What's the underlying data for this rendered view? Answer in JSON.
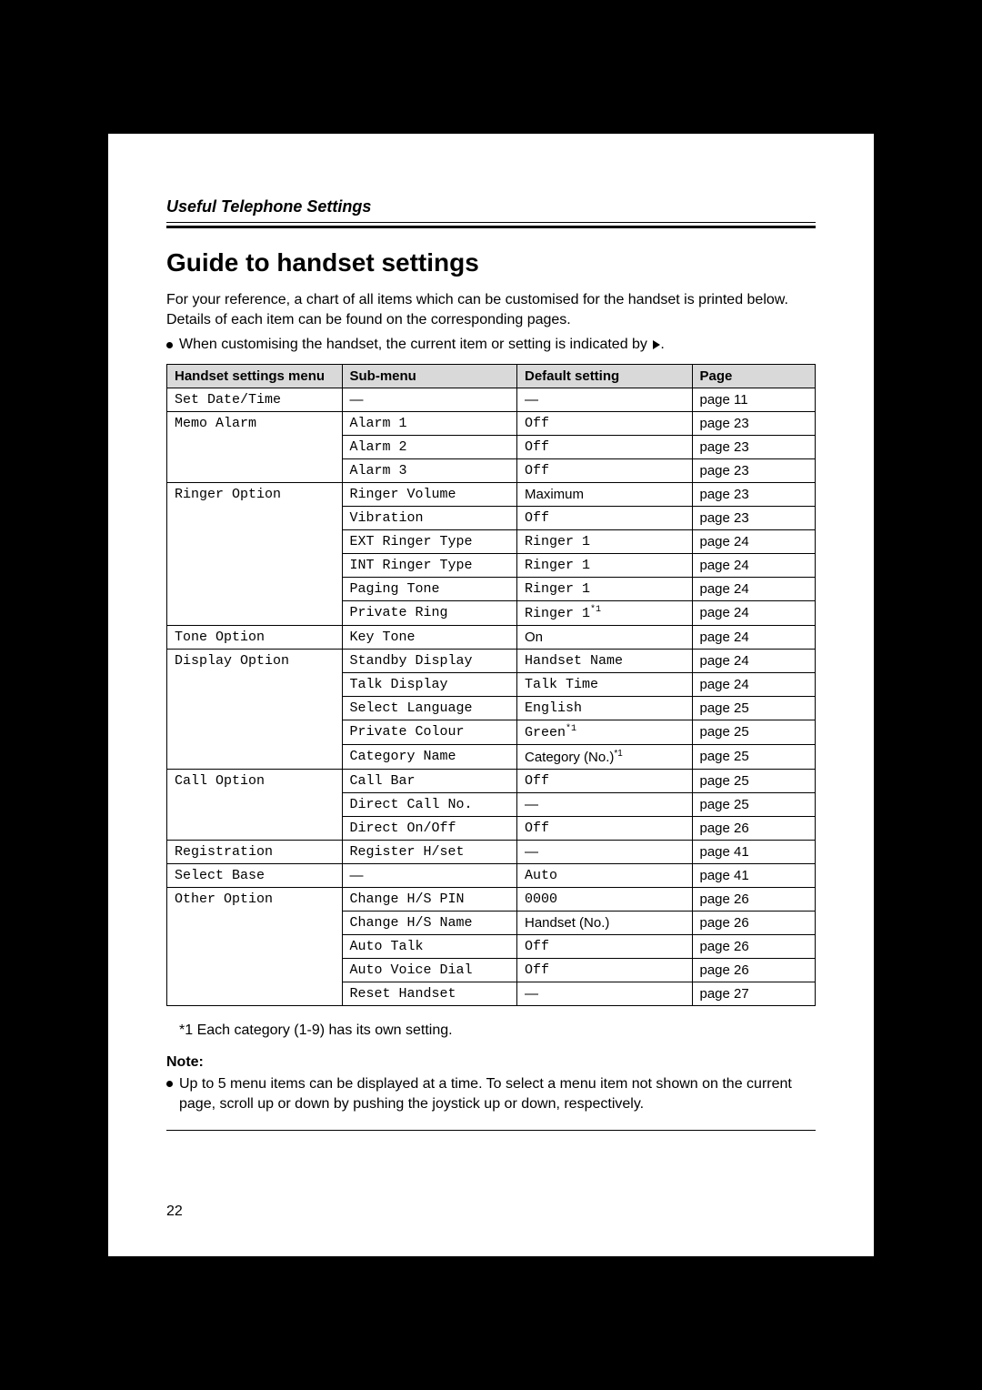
{
  "section_label": "Useful Telephone Settings",
  "title": "Guide to handset settings",
  "intro": "For your reference, a chart of all items which can be customised for the handset is printed below. Details of each item can be found on the corresponding pages.",
  "bullet_customising_prefix": "When customising the handset, the current item or setting is indicated by ",
  "bullet_customising_suffix": ".",
  "headers": {
    "menu": "Handset settings menu",
    "submenu": "Sub-menu",
    "default": "Default setting",
    "page": "Page"
  },
  "rows": [
    {
      "menu": "Set Date/Time",
      "menu_mono": true,
      "sub": "—",
      "sub_mono": false,
      "sub_dash": true,
      "def": "—",
      "def_mono": false,
      "def_dash": true,
      "page": "page 11",
      "menu_border": "single"
    },
    {
      "menu": "Memo Alarm",
      "menu_mono": true,
      "sub": "Alarm 1",
      "sub_mono": true,
      "def": "Off",
      "def_mono": true,
      "page": "page 23",
      "menu_border": "open_bottom"
    },
    {
      "menu": "",
      "sub": "Alarm 2",
      "sub_mono": true,
      "def": "Off",
      "def_mono": true,
      "page": "page 23",
      "menu_border": "open_both"
    },
    {
      "menu": "",
      "sub": "Alarm 3",
      "sub_mono": true,
      "def": "Off",
      "def_mono": true,
      "page": "page 23",
      "menu_border": "open_top"
    },
    {
      "menu": "Ringer Option",
      "menu_mono": true,
      "sub": "Ringer Volume",
      "sub_mono": true,
      "def": "Maximum",
      "def_mono": false,
      "page": "page 23",
      "menu_border": "open_bottom"
    },
    {
      "menu": "",
      "sub": "Vibration",
      "sub_mono": true,
      "def": "Off",
      "def_mono": true,
      "page": "page 23",
      "menu_border": "open_both"
    },
    {
      "menu": "",
      "sub": "EXT Ringer Type",
      "sub_mono": true,
      "def": "Ringer 1",
      "def_mono": true,
      "page": "page 24",
      "menu_border": "open_both"
    },
    {
      "menu": "",
      "sub": "INT Ringer Type",
      "sub_mono": true,
      "def": "Ringer 1",
      "def_mono": true,
      "page": "page 24",
      "menu_border": "open_both"
    },
    {
      "menu": "",
      "sub": "Paging Tone",
      "sub_mono": true,
      "def": "Ringer 1",
      "def_mono": true,
      "page": "page 24",
      "menu_border": "open_both"
    },
    {
      "menu": "",
      "sub": "Private Ring",
      "sub_mono": true,
      "def": "Ringer 1",
      "def_mono": true,
      "def_sup": "*1",
      "page": "page 24",
      "menu_border": "open_top"
    },
    {
      "menu": "Tone Option",
      "menu_mono": true,
      "sub": "Key Tone",
      "sub_mono": true,
      "def": "On",
      "def_mono": false,
      "page": "page 24",
      "menu_border": "single"
    },
    {
      "menu": "Display Option",
      "menu_mono": true,
      "sub": "Standby Display",
      "sub_mono": true,
      "def": "Handset Name",
      "def_mono": true,
      "page": "page 24",
      "menu_border": "open_bottom"
    },
    {
      "menu": "",
      "sub": "Talk Display",
      "sub_mono": true,
      "def": "Talk Time",
      "def_mono": true,
      "page": "page 24",
      "menu_border": "open_both"
    },
    {
      "menu": "",
      "sub": "Select Language",
      "sub_mono": true,
      "def": "English",
      "def_mono": true,
      "page": "page 25",
      "menu_border": "open_both"
    },
    {
      "menu": "",
      "sub": "Private Colour",
      "sub_mono": true,
      "def": "Green",
      "def_mono": true,
      "def_sup": "*1",
      "page": "page 25",
      "menu_border": "open_both"
    },
    {
      "menu": "",
      "sub": "Category Name",
      "sub_mono": true,
      "def": "Category (No.)",
      "def_mono": false,
      "def_sup": "*1",
      "page": "page 25",
      "menu_border": "open_top"
    },
    {
      "menu": "Call Option",
      "menu_mono": true,
      "sub": "Call Bar",
      "sub_mono": true,
      "def": "Off",
      "def_mono": true,
      "page": "page 25",
      "menu_border": "open_bottom"
    },
    {
      "menu": "",
      "sub": "Direct Call No.",
      "sub_mono": true,
      "def": "—",
      "def_dash": true,
      "page": "page 25",
      "menu_border": "open_both"
    },
    {
      "menu": "",
      "sub": "Direct On/Off",
      "sub_mono": true,
      "def": "Off",
      "def_mono": true,
      "page": "page 26",
      "menu_border": "open_top"
    },
    {
      "menu": "Registration",
      "menu_mono": true,
      "sub": "Register H/set",
      "sub_mono": true,
      "def": "—",
      "def_dash": true,
      "page": "page 41",
      "menu_border": "single"
    },
    {
      "menu": "Select Base",
      "menu_mono": true,
      "sub": "—",
      "sub_dash": true,
      "def": "Auto",
      "def_mono": true,
      "page": "page 41",
      "menu_border": "single"
    },
    {
      "menu": "Other Option",
      "menu_mono": true,
      "sub": "Change H/S PIN",
      "sub_mono": true,
      "def": "0000",
      "def_mono": true,
      "page": "page 26",
      "menu_border": "open_bottom"
    },
    {
      "menu": "",
      "sub": "Change H/S Name",
      "sub_mono": true,
      "def": "Handset (No.)",
      "def_mono": false,
      "page": "page 26",
      "menu_border": "open_both"
    },
    {
      "menu": "",
      "sub": "Auto Talk",
      "sub_mono": true,
      "def": "Off",
      "def_mono": true,
      "page": "page 26",
      "menu_border": "open_both"
    },
    {
      "menu": "",
      "sub": "Auto Voice Dial",
      "sub_mono": true,
      "def": "Off",
      "def_mono": true,
      "page": "page 26",
      "menu_border": "open_both"
    },
    {
      "menu": "",
      "sub": "Reset Handset",
      "sub_mono": true,
      "def": "—",
      "def_dash": true,
      "page": "page 27",
      "menu_border": "open_top"
    }
  ],
  "footnote": "*1 Each category (1-9) has its own setting.",
  "note_label": "Note:",
  "note_body": "Up to 5 menu items can be displayed at a time. To select a menu item not shown on the current page, scroll up or down by pushing the joystick up or down, respectively.",
  "page_number": "22"
}
